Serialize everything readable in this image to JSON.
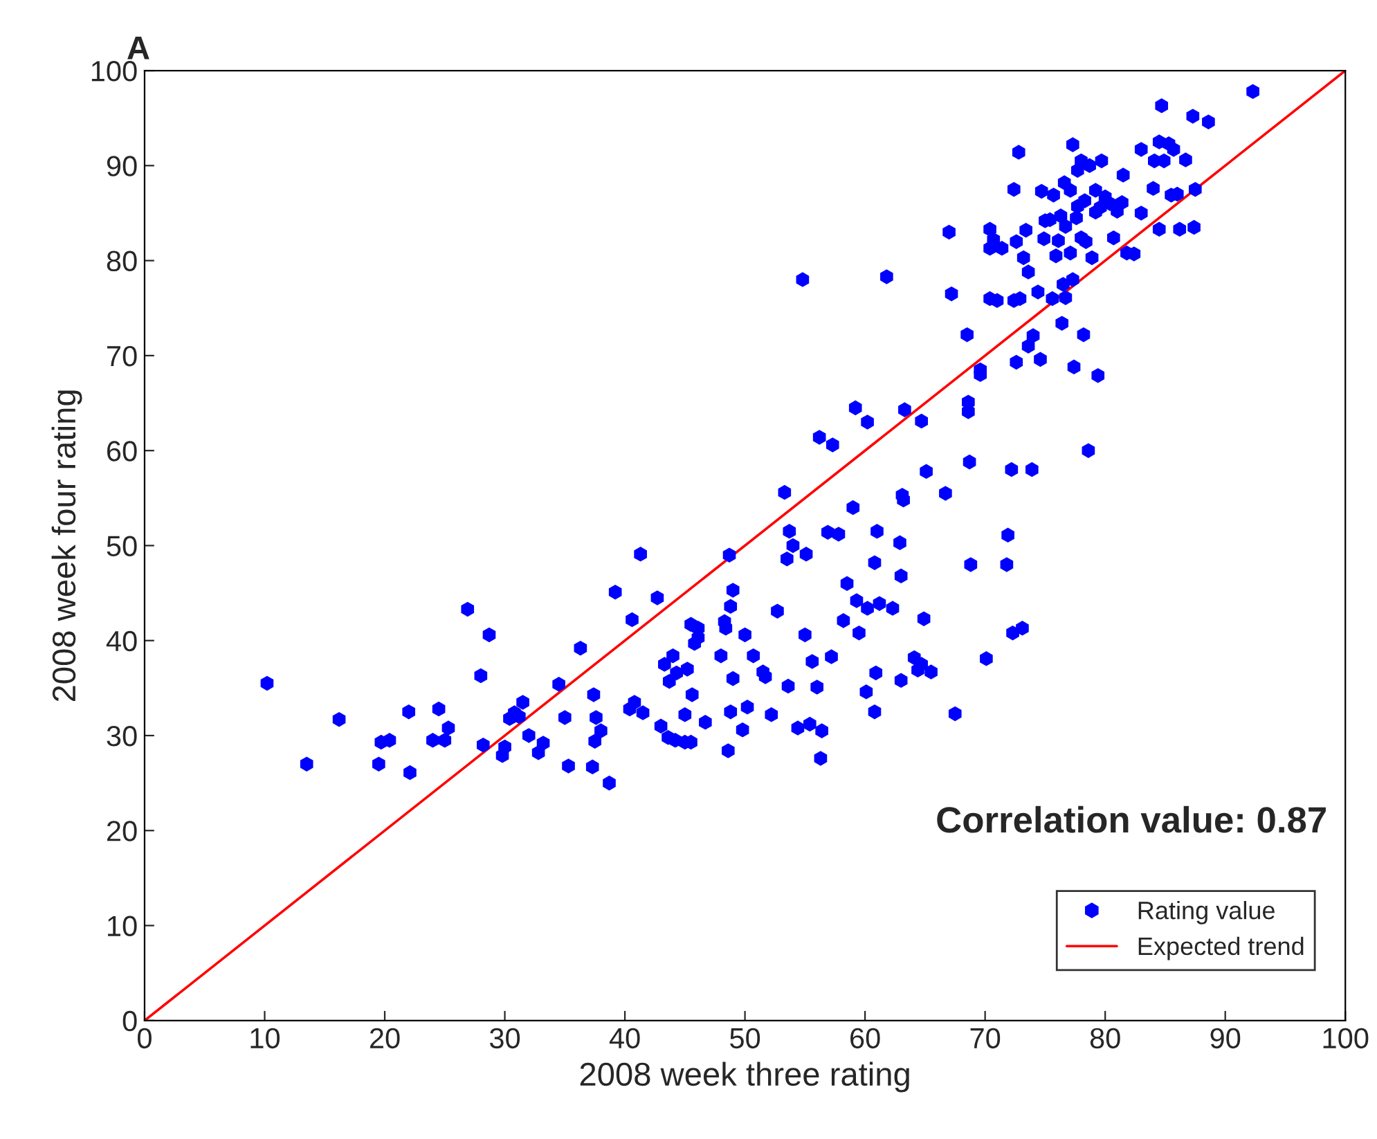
{
  "chart_data": {
    "type": "scatter",
    "title": "A",
    "xlabel": "2008 week three rating",
    "ylabel": "2008 week four rating",
    "annotations": [
      "Correlation value: 0.87"
    ],
    "xlim": [
      0,
      100
    ],
    "ylim": [
      0,
      100
    ],
    "xticks": [
      0,
      10,
      20,
      30,
      40,
      50,
      60,
      70,
      80,
      90,
      100
    ],
    "yticks": [
      0,
      10,
      20,
      30,
      40,
      50,
      60,
      70,
      80,
      90,
      100
    ],
    "grid": false,
    "legend": "bottom right",
    "series": [
      {
        "name": "Rating value",
        "marker": "circle",
        "color": "#0000ff",
        "x": [
          10.2,
          13.5,
          16.2,
          19.5,
          19.7,
          20.4,
          22,
          22.1,
          24,
          24.5,
          25,
          25.3,
          26.9,
          28,
          28.2,
          28.7,
          29.8,
          30,
          30.4,
          30.8,
          31.2,
          31.5,
          32,
          32.8,
          33.2,
          34.5,
          35,
          35.3,
          36.3,
          37.3,
          37.5,
          37.6,
          37.4,
          38,
          38.7,
          39.2,
          40.4,
          40.6,
          40.8,
          41.3,
          41.5,
          42.7,
          43,
          43.3,
          43.7,
          43.6,
          44,
          44.3,
          44.2,
          45,
          45.5,
          45.2,
          45,
          45.5,
          45.6,
          45.8,
          46.1,
          46.1,
          46.7,
          48,
          48.3,
          48.4,
          48.7,
          48.6,
          48.8,
          48.8,
          49,
          49,
          49.8,
          50,
          50.2,
          50.7,
          51.5,
          51.7,
          52.2,
          52.7,
          53.3,
          53.5,
          53.7,
          53.6,
          54,
          54.4,
          54.8,
          55,
          55.1,
          55.4,
          55.6,
          56,
          56.4,
          56.3,
          56.2,
          56.9,
          57.2,
          57.3,
          57.8,
          58.2,
          58.5,
          59,
          59.2,
          59.3,
          59.5,
          60.2,
          60.2,
          60.1,
          60.8,
          60.8,
          60.9,
          61,
          61.2,
          61.8,
          62.3,
          62.9,
          63.1,
          63,
          63.2,
          63.3,
          63,
          64.1,
          64.4,
          64.7,
          64.7,
          64.9,
          65.1,
          65.5,
          66.7,
          67,
          67.2,
          67.5,
          68.5,
          68.6,
          68.6,
          68.7,
          68.8,
          69.6,
          69.6,
          70.1,
          70.4,
          70.4,
          70.4,
          70.7,
          71,
          71.4,
          71.8,
          71.9,
          72.2,
          72.3,
          72.4,
          72.4,
          72.6,
          72.6,
          72.8,
          72.9,
          73.2,
          73.1,
          73.4,
          73.6,
          73.9,
          73.6,
          74,
          74.4,
          74.6,
          74.7,
          74.9,
          75,
          75.4,
          75.6,
          75.7,
          75.9,
          76.1,
          76.3,
          76.4,
          76.5,
          76.7,
          76.7,
          76.6,
          77.1,
          77.3,
          77.4,
          77.1,
          77.3,
          77.6,
          77.7,
          77.7,
          78,
          78,
          78.2,
          78.3,
          78.4,
          78.7,
          78.6,
          78.9,
          79.2,
          79.2,
          79.6,
          79.4,
          79.7,
          80,
          80.4,
          80.7,
          81,
          81.4,
          81.5,
          81.8,
          82.4,
          83,
          83,
          84,
          84.1,
          84.5,
          84.7,
          84.5,
          84.9,
          85.3,
          85.5,
          85.7,
          86,
          86.2,
          87.3,
          87.4,
          87.5,
          88.6,
          86.7,
          92.3
        ],
        "values": [
          35.5,
          27,
          31.7,
          27,
          29.3,
          29.5,
          32.5,
          26.1,
          29.5,
          32.8,
          29.5,
          30.8,
          43.3,
          36.3,
          29,
          40.6,
          27.9,
          28.8,
          31.8,
          32.4,
          32,
          33.5,
          30,
          28.2,
          29.2,
          35.4,
          31.9,
          26.8,
          39.2,
          26.7,
          29.4,
          31.9,
          34.3,
          30.5,
          25,
          45.1,
          32.8,
          42.2,
          33.5,
          49.1,
          32.4,
          44.5,
          31,
          37.5,
          35.7,
          29.8,
          38.4,
          36.6,
          29.5,
          29.3,
          29.3,
          37,
          32.2,
          41.7,
          34.3,
          39.7,
          40.3,
          41.3,
          31.4,
          38.4,
          42,
          41.3,
          49,
          28.4,
          32.5,
          43.6,
          36,
          45.3,
          30.6,
          40.6,
          33,
          38.4,
          36.7,
          36.2,
          32.2,
          43.1,
          55.6,
          48.6,
          51.5,
          35.2,
          50,
          30.8,
          78,
          40.6,
          49.1,
          31.2,
          37.8,
          35.1,
          30.5,
          27.6,
          61.4,
          51.4,
          38.3,
          60.6,
          51.2,
          42.1,
          46,
          54,
          64.5,
          44.2,
          40.8,
          63,
          43.4,
          34.6,
          32.5,
          48.2,
          36.6,
          51.5,
          43.9,
          78.3,
          43.4,
          50.3,
          55.3,
          46.8,
          54.8,
          64.3,
          35.8,
          38.2,
          36.9,
          37.5,
          63.1,
          42.3,
          57.8,
          36.7,
          55.5,
          83,
          76.5,
          32.3,
          72.2,
          64.1,
          65.1,
          58.8,
          48,
          68,
          68.5,
          38.1,
          76,
          81.3,
          83.3,
          82.2,
          75.8,
          81.3,
          48,
          51.1,
          58,
          40.8,
          75.8,
          87.5,
          69.3,
          82,
          91.4,
          76,
          80.3,
          41.3,
          83.2,
          71,
          58,
          78.8,
          72.1,
          76.7,
          69.6,
          87.3,
          82.3,
          84.2,
          84.3,
          76,
          86.9,
          80.5,
          82.1,
          84.7,
          73.4,
          77.5,
          83.6,
          76.1,
          88.2,
          87.4,
          92.2,
          68.8,
          80.8,
          78,
          84.5,
          85.7,
          89.5,
          82.4,
          90.5,
          72.2,
          86.3,
          82,
          90,
          60,
          80.3,
          85.1,
          87.4,
          85.6,
          67.9,
          90.5,
          86.7,
          86,
          82.4,
          85.2,
          86.1,
          89,
          80.8,
          80.7,
          91.7,
          85,
          87.6,
          90.5,
          92.5,
          96.3,
          83.3,
          90.5,
          92.3,
          86.9,
          91.7,
          87,
          83.3,
          95.2,
          83.5,
          87.5,
          94.6,
          90.6,
          97.8
        ]
      },
      {
        "name": "Expected trend",
        "type": "line",
        "line_style": "solid",
        "marker": "none",
        "color": "#ff0000",
        "x": [
          0,
          100
        ],
        "values": [
          0,
          100
        ]
      }
    ]
  }
}
